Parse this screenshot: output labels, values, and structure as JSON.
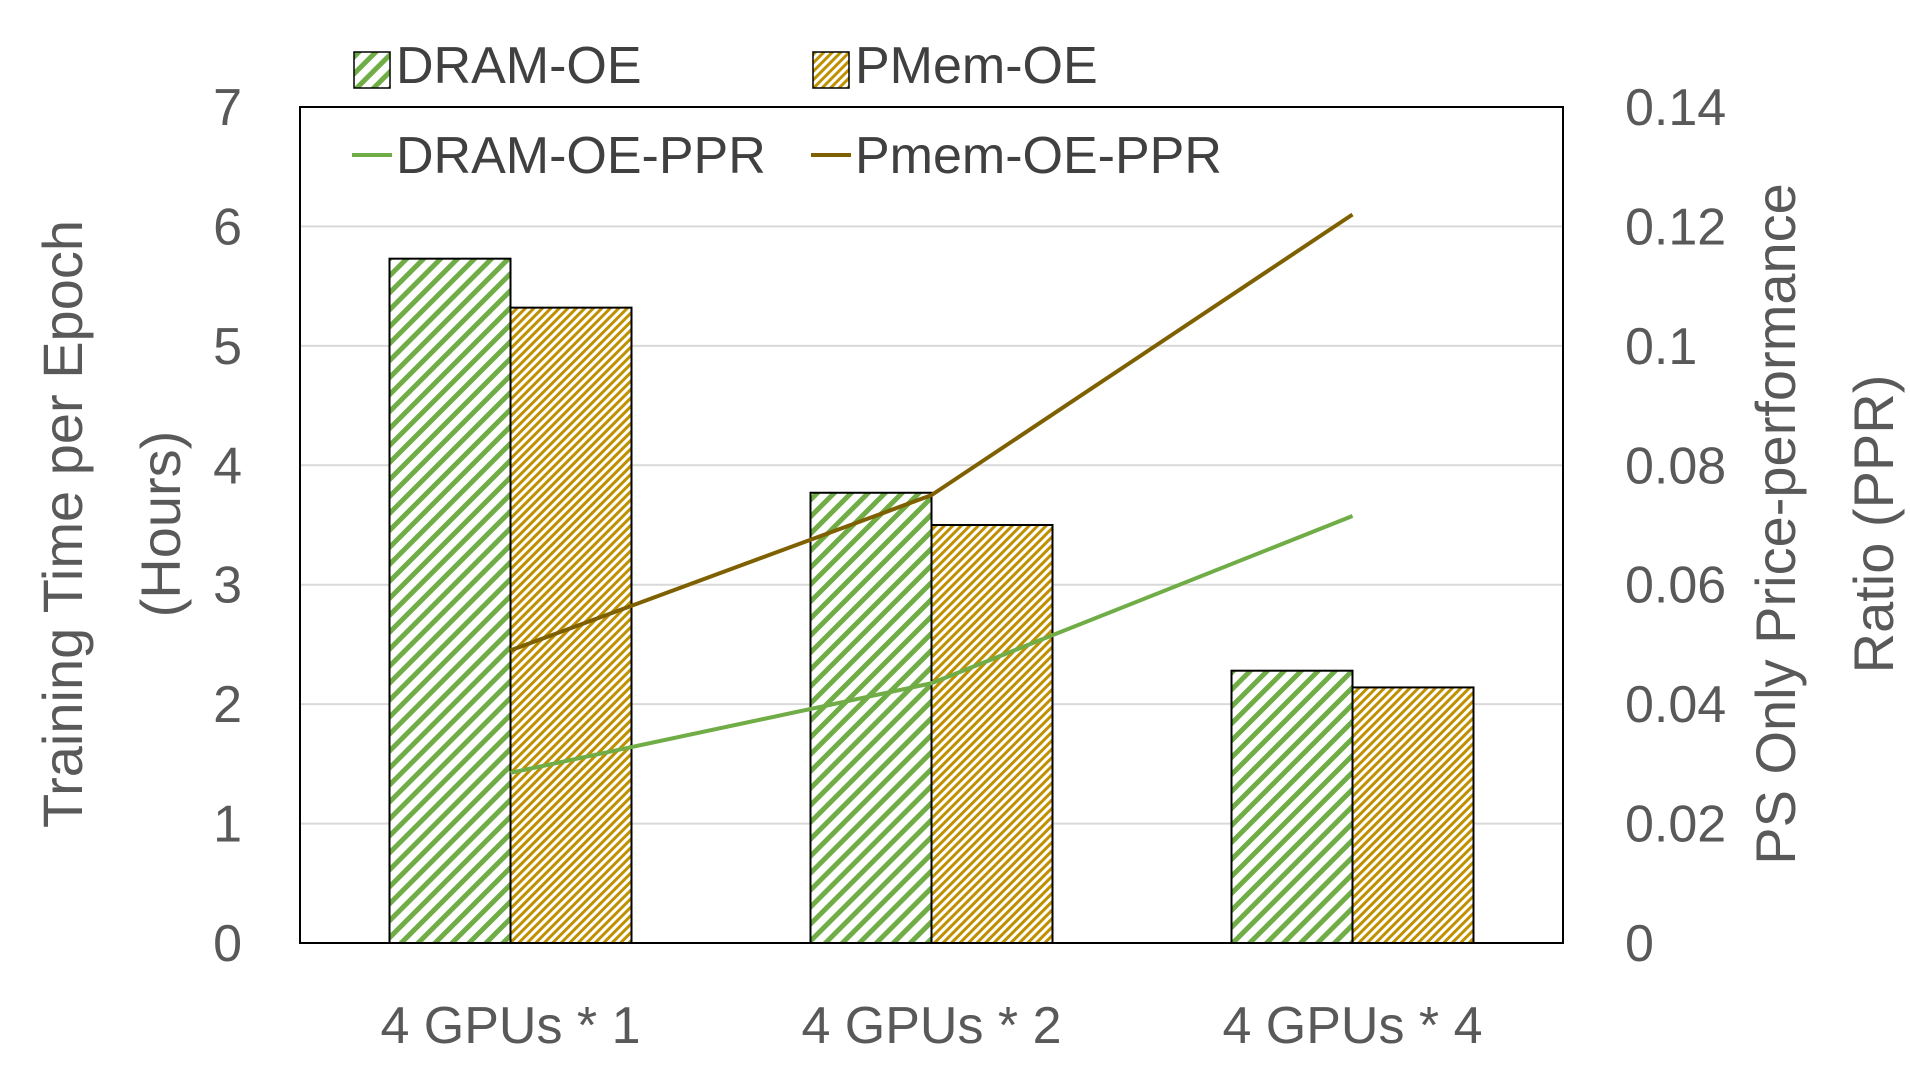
{
  "chart_data": {
    "type": "bar",
    "categories": [
      "4 GPUs * 1",
      "4 GPUs * 2",
      "4 GPUs * 4"
    ],
    "series": [
      {
        "name": "DRAM-OE",
        "type": "bar",
        "axis": "left",
        "values": [
          5.73,
          3.77,
          2.28
        ],
        "color": "#70AD47",
        "pattern": "diagonal-stripes"
      },
      {
        "name": "PMem-OE",
        "type": "bar",
        "axis": "left",
        "values": [
          5.32,
          3.5,
          2.14
        ],
        "color": "#BF9000",
        "pattern": "dense-diagonal-stripes"
      },
      {
        "name": "DRAM-OE-PPR",
        "type": "line",
        "axis": "right",
        "values": [
          0.0285,
          0.0435,
          0.0715
        ],
        "color": "#70AD47"
      },
      {
        "name": "Pmem-OE-PPR",
        "type": "line",
        "axis": "right",
        "values": [
          0.049,
          0.075,
          0.122
        ],
        "color": "#7F6000"
      }
    ],
    "ylabel": "Training Time per Epoch (Hours)",
    "ylabel_lines": [
      "Training Time per Epoch",
      "(Hours)"
    ],
    "y2label": "PS Only Price-performance Ratio (PPR)",
    "y2label_lines": [
      "PS Only Price-performance",
      "Ratio (PPR)"
    ],
    "ylim": [
      0,
      7
    ],
    "y2lim": [
      0,
      0.14
    ],
    "yticks": [
      "0",
      "1",
      "2",
      "3",
      "4",
      "5",
      "6",
      "7"
    ],
    "y2ticks": [
      "0",
      "0.02",
      "0.04",
      "0.06",
      "0.08",
      "0.1",
      "0.12",
      "0.14"
    ],
    "grid": true,
    "legend_position": "top-left",
    "legend": [
      "DRAM-OE",
      "PMem-OE",
      "DRAM-OE-PPR",
      "Pmem-OE-PPR"
    ]
  }
}
